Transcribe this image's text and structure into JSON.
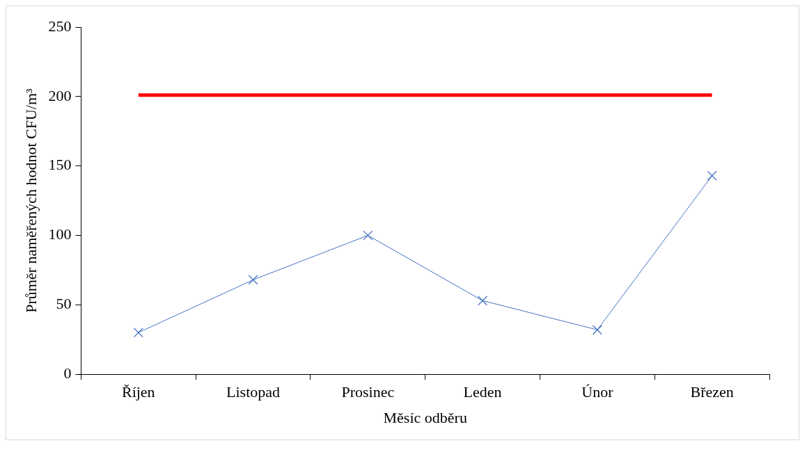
{
  "chart_data": {
    "type": "line",
    "xlabel": "Měsíc odběru",
    "ylabel": "Průměr naměřených hodnot CFU/m³",
    "categories": [
      "Říjen",
      "Listopad",
      "Prosinec",
      "Leden",
      "Únor",
      "Březen"
    ],
    "series": [
      {
        "color": "#4472c4",
        "values": [
          30,
          68,
          100,
          53,
          32,
          143
        ],
        "marker": "cross"
      },
      {
        "color": "#ff0000",
        "values": [
          201,
          201,
          201,
          201,
          201,
          201
        ],
        "marker": "none"
      }
    ],
    "ylim": [
      0,
      250
    ],
    "yticks": [
      0,
      50,
      100,
      150,
      200,
      250
    ],
    "grid": false,
    "legend": false
  }
}
